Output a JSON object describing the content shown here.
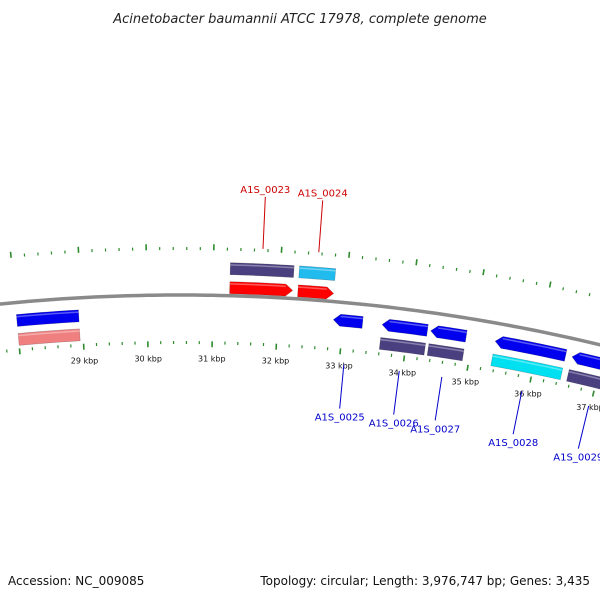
{
  "title": "Acinetobacter baumannii ATCC 17978, complete genome",
  "footer": {
    "accession": "Accession: NC_009085",
    "summary": "Topology: circular; Length: 3,976,747 bp; Genes: 3,435"
  },
  "colors": {
    "backbone": "#8a8a8a",
    "tick": "#2e8b2e",
    "forward_label": "#cc0000",
    "reverse_label": "#0000cc",
    "cds_forward": "#ff0000",
    "cds_forward_light": "#f08080",
    "cds_reverse": "#0000ee",
    "gene_track": "#4a4080",
    "rna_track": "#00e0f0",
    "rna_track_alt": "#22bbee"
  },
  "scale": {
    "labels": [
      "29 kbp",
      "30 kbp",
      "31 kbp",
      "32 kbp",
      "33 kbp",
      "34 kbp",
      "35 kbp",
      "36 kbp",
      "37 kbp"
    ]
  },
  "features": [
    {
      "id": "f-28",
      "strand": "+",
      "start": 28.0,
      "end": 28.95,
      "track": "inner",
      "color": "cds_reverse",
      "cap": false,
      "label": ""
    },
    {
      "id": "f-28b",
      "strand": "+",
      "start": 28.0,
      "end": 28.95,
      "track": "inner2",
      "color": "cds_forward_light",
      "cap": false,
      "label": ""
    },
    {
      "id": "A1S_0023",
      "strand": "+",
      "start": 31.25,
      "end": 32.2,
      "track": "outer",
      "color": "gene_track",
      "cap": false,
      "label": "A1S_0023"
    },
    {
      "id": "A1S_0023-cds",
      "strand": "+",
      "start": 31.25,
      "end": 32.2,
      "track": "outer2",
      "color": "cds_forward",
      "cap": true,
      "label": ""
    },
    {
      "id": "A1S_0024",
      "strand": "+",
      "start": 32.28,
      "end": 32.82,
      "track": "outer",
      "color": "rna_track_alt",
      "cap": false,
      "label": "A1S_0024"
    },
    {
      "id": "A1S_0024-cds",
      "strand": "+",
      "start": 32.28,
      "end": 32.82,
      "track": "outer2",
      "color": "cds_forward",
      "cap": true,
      "label": ""
    },
    {
      "id": "A1S_0025",
      "strand": "-",
      "start": 32.85,
      "end": 33.3,
      "track": "inner",
      "color": "cds_reverse",
      "cap": true,
      "label": "A1S_0025"
    },
    {
      "id": "A1S_0026",
      "strand": "-",
      "start": 33.6,
      "end": 34.3,
      "track": "inner",
      "color": "cds_reverse",
      "cap": true,
      "label": "A1S_0026"
    },
    {
      "id": "A1S_0026-gene",
      "strand": "-",
      "start": 33.6,
      "end": 34.3,
      "track": "inner2",
      "color": "gene_track",
      "cap": false,
      "label": ""
    },
    {
      "id": "A1S_0027",
      "strand": "-",
      "start": 34.35,
      "end": 34.9,
      "track": "inner",
      "color": "cds_reverse",
      "cap": true,
      "label": "A1S_0027"
    },
    {
      "id": "A1S_0027-gene",
      "strand": "-",
      "start": 34.35,
      "end": 34.9,
      "track": "inner2",
      "color": "gene_track",
      "cap": false,
      "label": ""
    },
    {
      "id": "A1S_0028",
      "strand": "-",
      "start": 35.35,
      "end": 36.45,
      "track": "inner",
      "color": "cds_reverse",
      "cap": true,
      "label": "A1S_0028"
    },
    {
      "id": "A1S_0028-gene",
      "strand": "-",
      "start": 35.35,
      "end": 36.45,
      "track": "inner2",
      "color": "rna_track",
      "cap": false,
      "label": ""
    },
    {
      "id": "A1S_0029",
      "strand": "-",
      "start": 36.55,
      "end": 37.4,
      "track": "inner",
      "color": "cds_reverse",
      "cap": true,
      "label": "A1S_0029"
    },
    {
      "id": "A1S_0029-gene",
      "strand": "-",
      "start": 36.55,
      "end": 37.4,
      "track": "inner2",
      "color": "gene_track",
      "cap": false,
      "label": ""
    },
    {
      "id": "f-38",
      "strand": "-",
      "start": 37.6,
      "end": 38.2,
      "track": "inner",
      "color": "cds_reverse",
      "cap": true,
      "label": ""
    }
  ]
}
